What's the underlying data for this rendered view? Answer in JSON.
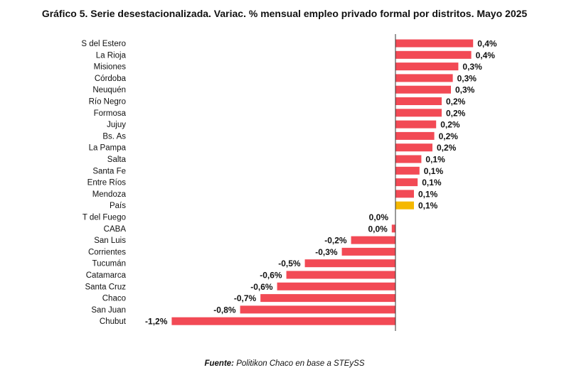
{
  "chart_data": {
    "type": "bar",
    "orientation": "horizontal",
    "title": "Gráfico 5. Serie desestacionalizada. Variac. % mensual empleo privado formal por distritos. Mayo 2025",
    "xlabel": "",
    "ylabel": "",
    "xlim": [
      -1.2,
      0.4
    ],
    "grid": false,
    "legend": "none",
    "colors": {
      "default": "#f24a55",
      "highlight": "#f5b800",
      "axis": "#333333"
    },
    "categories": [
      "S del Estero",
      "La Rioja",
      "Misiones",
      "Córdoba",
      "Neuquén",
      "Río Negro",
      "Formosa",
      "Jujuy",
      "Bs. As",
      "La Pampa",
      "Salta",
      "Santa Fe",
      "Entre Ríos",
      "Mendoza",
      "País",
      "T del Fuego",
      "CABA",
      "San Luis",
      "Corrientes",
      "Tucumán",
      "Catamarca",
      "Santa Cruz",
      "Chaco",
      "San Juan",
      "Chubut"
    ],
    "values": [
      0.42,
      0.41,
      0.34,
      0.31,
      0.3,
      0.25,
      0.25,
      0.22,
      0.21,
      0.2,
      0.14,
      0.13,
      0.12,
      0.1,
      0.1,
      0.0,
      -0.02,
      -0.24,
      -0.29,
      -0.49,
      -0.59,
      -0.64,
      -0.73,
      -0.84,
      -1.21
    ],
    "labels": [
      "0,4%",
      "0,4%",
      "0,3%",
      "0,3%",
      "0,3%",
      "0,2%",
      "0,2%",
      "0,2%",
      "0,2%",
      "0,2%",
      "0,1%",
      "0,1%",
      "0,1%",
      "0,1%",
      "0,1%",
      "0,0%",
      "0,0%",
      "-0,2%",
      "-0,3%",
      "-0,5%",
      "-0,6%",
      "-0,6%",
      "-0,7%",
      "-0,8%",
      "-1,2%"
    ],
    "highlight": "País",
    "source_label": "Fuente:",
    "source_text": "Politikon Chaco en base a STEySS"
  }
}
